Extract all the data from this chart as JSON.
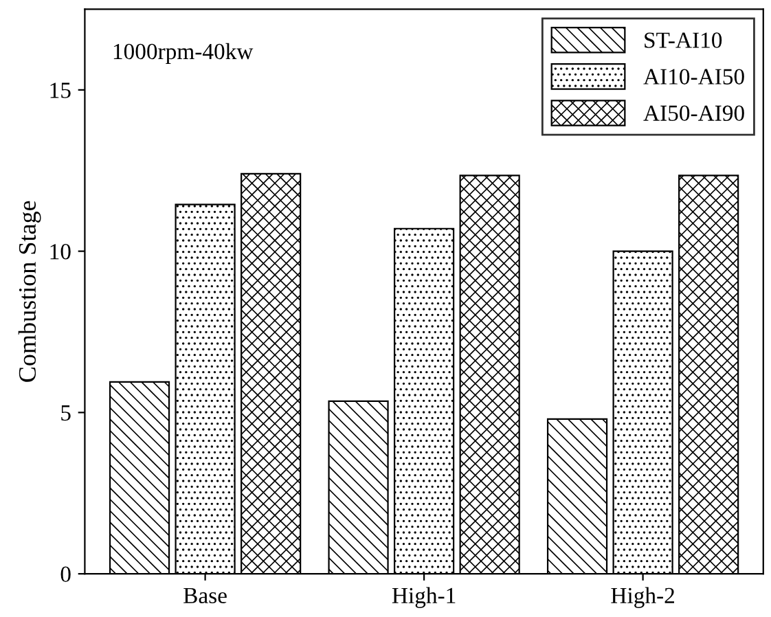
{
  "chart_data": {
    "type": "bar",
    "ylabel": "Combustion Stage",
    "categories": [
      "Base",
      "High-1",
      "High-2"
    ],
    "series": [
      {
        "name": "ST-AI10",
        "color": "#000000",
        "values": [
          5.95,
          5.35,
          4.8
        ]
      },
      {
        "name": "AI10-AI50",
        "color": "#000000",
        "values": [
          11.45,
          10.7,
          10.0
        ]
      },
      {
        "name": "AI50-AI90",
        "color": "#000000",
        "values": [
          12.4,
          12.35,
          12.35
        ]
      }
    ],
    "ylim": [
      0,
      17.5
    ],
    "yticks": [
      0,
      5,
      10,
      15
    ],
    "grid": false,
    "legend": "top right",
    "annotations": [
      "1000rpm-40kw"
    ]
  }
}
